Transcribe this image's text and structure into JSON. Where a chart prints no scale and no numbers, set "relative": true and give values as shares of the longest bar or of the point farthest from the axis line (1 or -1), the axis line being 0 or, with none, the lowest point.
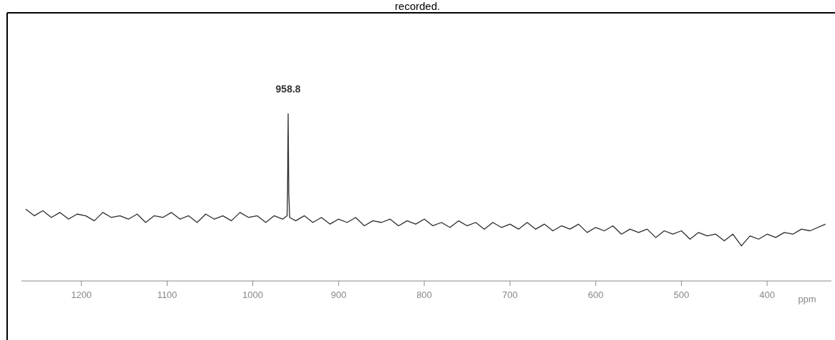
{
  "chart_data": {
    "type": "line",
    "relative": true,
    "xlabel": "ppm",
    "annotations": [
      "recorded.",
      {
        "text": "958.8",
        "x": 958.8,
        "y": 1
      }
    ],
    "xlim": [
      1270,
      325
    ],
    "xticks": [
      1200,
      1100,
      1000,
      900,
      800,
      700,
      600,
      500,
      400
    ],
    "grid": false,
    "line_style": "solid",
    "series": [
      {
        "color": "#2b2b2b",
        "x": [
          1265,
          1255,
          1245,
          1235,
          1225,
          1215,
          1205,
          1195,
          1185,
          1175,
          1165,
          1155,
          1145,
          1135,
          1125,
          1115,
          1105,
          1095,
          1085,
          1075,
          1065,
          1055,
          1045,
          1035,
          1025,
          1015,
          1005,
          995,
          985,
          975,
          965,
          960,
          959.5,
          958.8,
          958.1,
          957,
          950,
          940,
          930,
          920,
          910,
          900,
          890,
          880,
          870,
          860,
          850,
          840,
          830,
          820,
          810,
          800,
          790,
          780,
          770,
          760,
          750,
          740,
          730,
          720,
          710,
          700,
          690,
          680,
          670,
          660,
          650,
          640,
          630,
          620,
          610,
          600,
          590,
          580,
          570,
          560,
          550,
          540,
          530,
          520,
          510,
          500,
          490,
          480,
          470,
          460,
          450,
          440,
          430,
          420,
          410,
          400,
          390,
          380,
          370,
          360,
          350,
          332
        ],
        "values": [
          0.43,
          0.39,
          0.42,
          0.38,
          0.41,
          0.37,
          0.4,
          0.39,
          0.36,
          0.41,
          0.38,
          0.39,
          0.37,
          0.4,
          0.35,
          0.39,
          0.38,
          0.41,
          0.37,
          0.39,
          0.35,
          0.4,
          0.37,
          0.39,
          0.36,
          0.41,
          0.38,
          0.39,
          0.35,
          0.39,
          0.37,
          0.39,
          0.53,
          1,
          0.53,
          0.38,
          0.36,
          0.39,
          0.35,
          0.38,
          0.34,
          0.37,
          0.35,
          0.38,
          0.33,
          0.36,
          0.35,
          0.37,
          0.33,
          0.36,
          0.34,
          0.37,
          0.33,
          0.35,
          0.32,
          0.36,
          0.33,
          0.35,
          0.31,
          0.35,
          0.32,
          0.34,
          0.31,
          0.35,
          0.31,
          0.34,
          0.3,
          0.33,
          0.31,
          0.34,
          0.29,
          0.32,
          0.3,
          0.33,
          0.28,
          0.31,
          0.29,
          0.31,
          0.26,
          0.3,
          0.28,
          0.3,
          0.25,
          0.29,
          0.27,
          0.28,
          0.24,
          0.28,
          0.21,
          0.27,
          0.25,
          0.28,
          0.26,
          0.29,
          0.28,
          0.31,
          0.3,
          0.34
        ]
      }
    ]
  }
}
